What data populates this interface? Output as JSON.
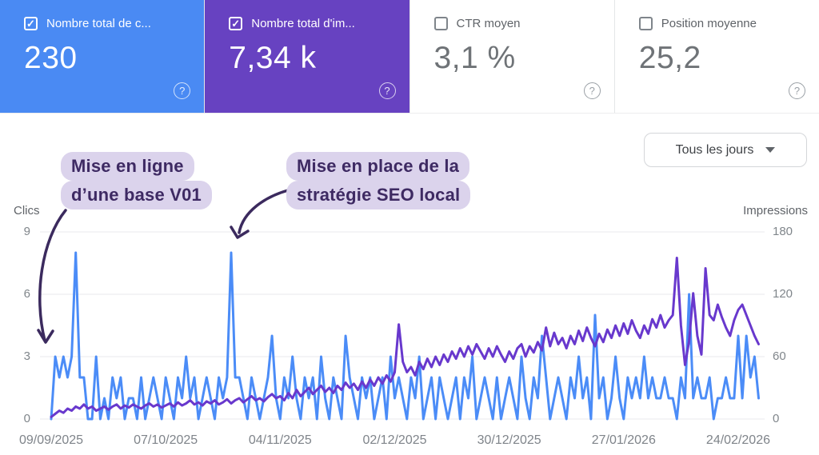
{
  "cards": [
    {
      "label": "Nombre total de c...",
      "value": "230",
      "checked": true,
      "check_glyph": "✓",
      "bg": "#4a8af3",
      "help_glyph": "?"
    },
    {
      "label": "Nombre total d'im...",
      "value": "7,34 k",
      "checked": true,
      "check_glyph": "✓",
      "bg": "#6742c1",
      "help_glyph": "?"
    },
    {
      "label": "CTR moyen",
      "value": "3,1 %",
      "checked": false,
      "check_glyph": "",
      "bg": "",
      "help_glyph": "?"
    },
    {
      "label": "Position moyenne",
      "value": "25,2",
      "checked": false,
      "check_glyph": "",
      "bg": "",
      "help_glyph": "?"
    }
  ],
  "controls": {
    "granularity_label": "Tous les jours"
  },
  "annotations": [
    {
      "line1": "Mise en ligne",
      "line2": "d’une base V01"
    },
    {
      "line1": "Mise en place de la",
      "line2": "stratégie SEO local"
    }
  ],
  "colors": {
    "clicks": "#4b8cf7",
    "impressions": "#6838cd",
    "annotation_bg": "#dbd3ec",
    "annotation_text": "#3e2a63",
    "arrow": "#3b2a5e",
    "gridline": "#e9eaec"
  },
  "chart_data": {
    "type": "line",
    "title": "",
    "x_tick_labels": [
      "09/09/2025",
      "07/10/2025",
      "04/11/2025",
      "02/12/2025",
      "30/12/2025",
      "27/01/2026",
      "24/02/2026"
    ],
    "left_axis": {
      "title": "Clics",
      "ticks": [
        0,
        3,
        6,
        9
      ],
      "range": [
        0,
        9
      ]
    },
    "right_axis": {
      "title": "Impressions",
      "ticks": [
        0,
        60,
        120,
        180
      ],
      "range": [
        0,
        180
      ]
    },
    "grid": true,
    "legend": "none",
    "series": [
      {
        "name": "Clics",
        "axis": "left",
        "color": "#4b8cf7",
        "values": [
          0,
          3,
          2,
          3,
          2,
          3,
          8,
          2,
          2,
          0,
          0,
          3,
          0,
          1,
          0,
          2,
          1,
          2,
          0,
          1,
          1,
          0,
          2,
          0,
          1,
          2,
          1,
          0,
          2,
          1,
          0,
          2,
          1,
          3,
          1,
          2,
          0,
          1,
          2,
          1,
          0,
          2,
          1,
          2,
          8,
          2,
          2,
          1,
          0,
          2,
          1,
          0,
          1,
          2,
          4,
          1,
          0,
          2,
          1,
          3,
          1,
          0,
          2,
          1,
          2,
          0,
          3,
          1,
          0,
          2,
          1,
          0,
          4,
          2,
          1,
          0,
          2,
          1,
          2,
          0,
          1,
          2,
          0,
          3,
          1,
          2,
          1,
          0,
          2,
          1,
          3,
          0,
          1,
          2,
          0,
          2,
          1,
          0,
          1,
          2,
          0,
          2,
          1,
          3,
          0,
          1,
          2,
          1,
          0,
          2,
          0,
          1,
          2,
          1,
          0,
          3,
          1,
          0,
          2,
          1,
          4,
          2,
          0,
          1,
          2,
          1,
          0,
          2,
          1,
          3,
          1,
          2,
          0,
          5,
          1,
          2,
          0,
          1,
          3,
          1,
          0,
          2,
          1,
          2,
          1,
          3,
          1,
          2,
          1,
          1,
          2,
          1,
          1,
          0,
          2,
          1,
          6,
          1,
          2,
          1,
          1,
          2,
          0,
          1,
          1,
          2,
          1,
          1,
          4,
          1,
          4,
          2,
          3,
          1
        ]
      },
      {
        "name": "Impressions",
        "axis": "right",
        "color": "#6838cd",
        "values": [
          2,
          5,
          8,
          6,
          10,
          8,
          12,
          10,
          14,
          10,
          12,
          8,
          10,
          12,
          9,
          12,
          14,
          10,
          13,
          11,
          14,
          12,
          10,
          13,
          15,
          12,
          14,
          11,
          13,
          15,
          12,
          16,
          13,
          15,
          18,
          14,
          16,
          13,
          17,
          15,
          18,
          14,
          16,
          19,
          15,
          18,
          20,
          16,
          19,
          22,
          18,
          20,
          17,
          21,
          24,
          20,
          22,
          18,
          25,
          20,
          28,
          22,
          26,
          30,
          24,
          28,
          32,
          26,
          30,
          25,
          32,
          28,
          35,
          30,
          34,
          28,
          36,
          30,
          38,
          32,
          40,
          34,
          42,
          36,
          45,
          91,
          55,
          45,
          50,
          42,
          55,
          48,
          58,
          50,
          60,
          52,
          62,
          55,
          65,
          58,
          68,
          60,
          70,
          62,
          72,
          65,
          58,
          68,
          60,
          70,
          62,
          55,
          65,
          58,
          68,
          72,
          60,
          70,
          64,
          74,
          66,
          88,
          70,
          83,
          72,
          78,
          68,
          80,
          72,
          85,
          75,
          88,
          78,
          70,
          82,
          74,
          86,
          78,
          90,
          80,
          92,
          82,
          95,
          85,
          78,
          90,
          82,
          96,
          88,
          100,
          88,
          95,
          100,
          155,
          90,
          52,
          75,
          121,
          80,
          62,
          145,
          100,
          95,
          110,
          98,
          88,
          80,
          95,
          105,
          110,
          100,
          90,
          80,
          72
        ]
      }
    ]
  }
}
